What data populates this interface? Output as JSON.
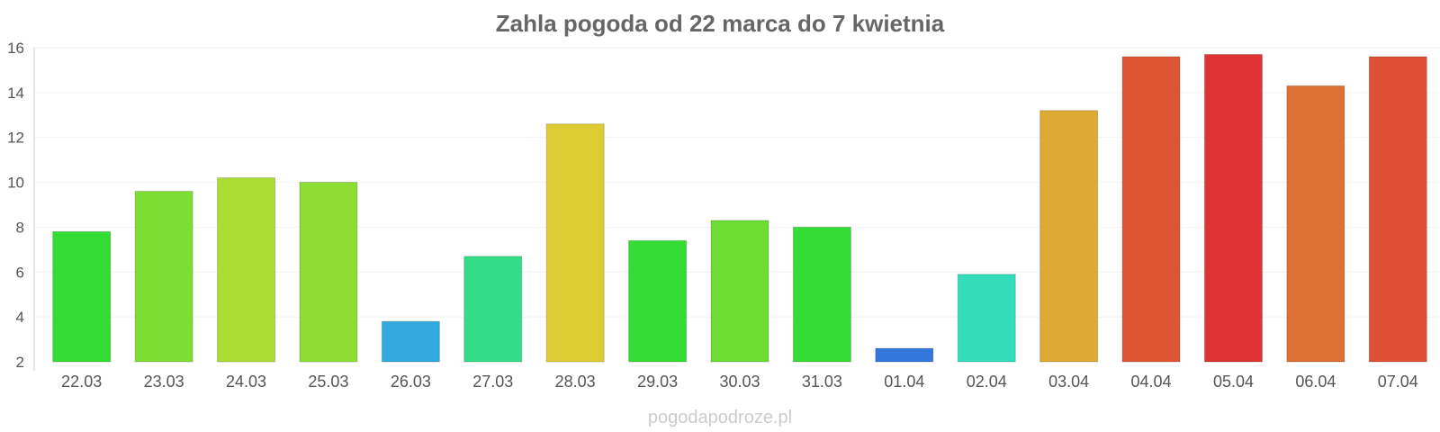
{
  "chart_data": {
    "type": "bar",
    "title": "Zahla pogoda od 22 marca do 7 kwietnia",
    "xlabel": "",
    "ylabel": "",
    "ylim": [
      2,
      16
    ],
    "yticks": [
      2,
      4,
      6,
      8,
      10,
      12,
      14,
      16
    ],
    "grid": true,
    "categories": [
      "22.03",
      "23.03",
      "24.03",
      "25.03",
      "26.03",
      "27.03",
      "28.03",
      "29.03",
      "30.03",
      "31.03",
      "01.04",
      "02.04",
      "03.04",
      "04.04",
      "05.04",
      "06.04",
      "07.04"
    ],
    "values": [
      7.8,
      9.6,
      10.2,
      10.0,
      3.8,
      6.7,
      12.6,
      7.4,
      8.3,
      8.0,
      2.6,
      5.9,
      13.2,
      15.6,
      15.7,
      14.3,
      15.6
    ],
    "colors": [
      "#33dd33",
      "#7ddd33",
      "#aadd33",
      "#8ddd33",
      "#33aadd",
      "#33dd88",
      "#ddcc33",
      "#33dd33",
      "#6ddd33",
      "#33dd33",
      "#3377dd",
      "#33ddbb",
      "#ddaa33",
      "#dd5533",
      "#dd3333",
      "#dd7033",
      "#dd5033"
    ]
  },
  "watermark": "pogodapodroze.pl"
}
